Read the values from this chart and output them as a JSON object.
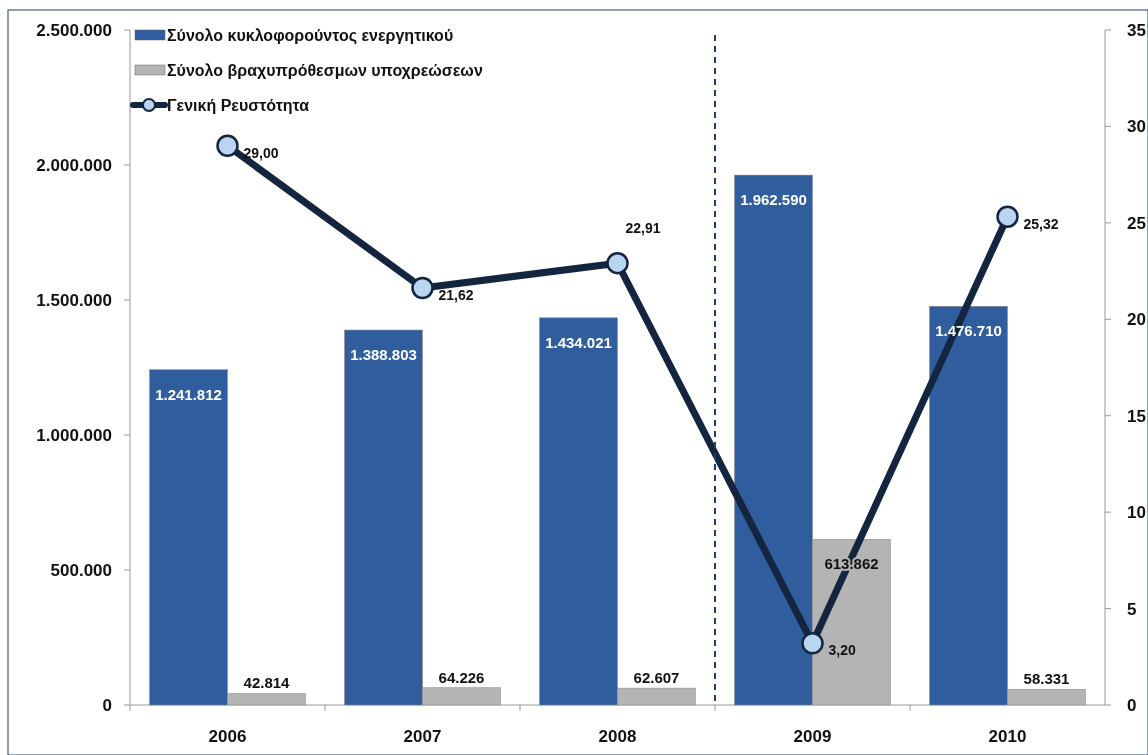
{
  "chart_data": {
    "type": "bar",
    "categories": [
      "2006",
      "2007",
      "2008",
      "2009",
      "2010"
    ],
    "series": [
      {
        "name": "Σύνολο κυκλοφορούντος ενεργητικού",
        "color": "#2f5d9e",
        "values": [
          1241812,
          1388803,
          1434021,
          1962590,
          1476710
        ],
        "value_labels": [
          "1.241.812",
          "1.388.803",
          "1.434.021",
          "1.962.590",
          "1.476.710"
        ]
      },
      {
        "name": "Σύνολο βραχυπρόθεσμων υποχρεώσεων",
        "color": "#b4b4b4",
        "values": [
          42814,
          64226,
          62607,
          613862,
          58331
        ],
        "value_labels": [
          "42.814",
          "64.226",
          "62.607",
          "613.862",
          "58.331"
        ]
      },
      {
        "name": "Γενική Ρευστότητα",
        "type": "line",
        "axis": "y2",
        "color": "#13253f",
        "marker": "circle",
        "values": [
          29.0,
          21.62,
          22.91,
          3.2,
          25.32
        ],
        "value_labels": [
          "29,00",
          "21,62",
          "22,91",
          "3,20",
          "25,32"
        ]
      }
    ],
    "ylim": [
      0,
      2500000
    ],
    "yticks": [
      {
        "value": 0,
        "label": "0"
      },
      {
        "value": 500000,
        "label": "500.000"
      },
      {
        "value": 1000000,
        "label": "1.000.000"
      },
      {
        "value": 1500000,
        "label": "1.500.000"
      },
      {
        "value": 2000000,
        "label": "2.000.000"
      },
      {
        "value": 2500000,
        "label": "2.500.000"
      }
    ],
    "y2lim": [
      0,
      35
    ],
    "y2ticks": [
      0,
      5,
      10,
      15,
      20,
      25,
      30,
      35
    ],
    "legend": "top left",
    "grid": false
  }
}
